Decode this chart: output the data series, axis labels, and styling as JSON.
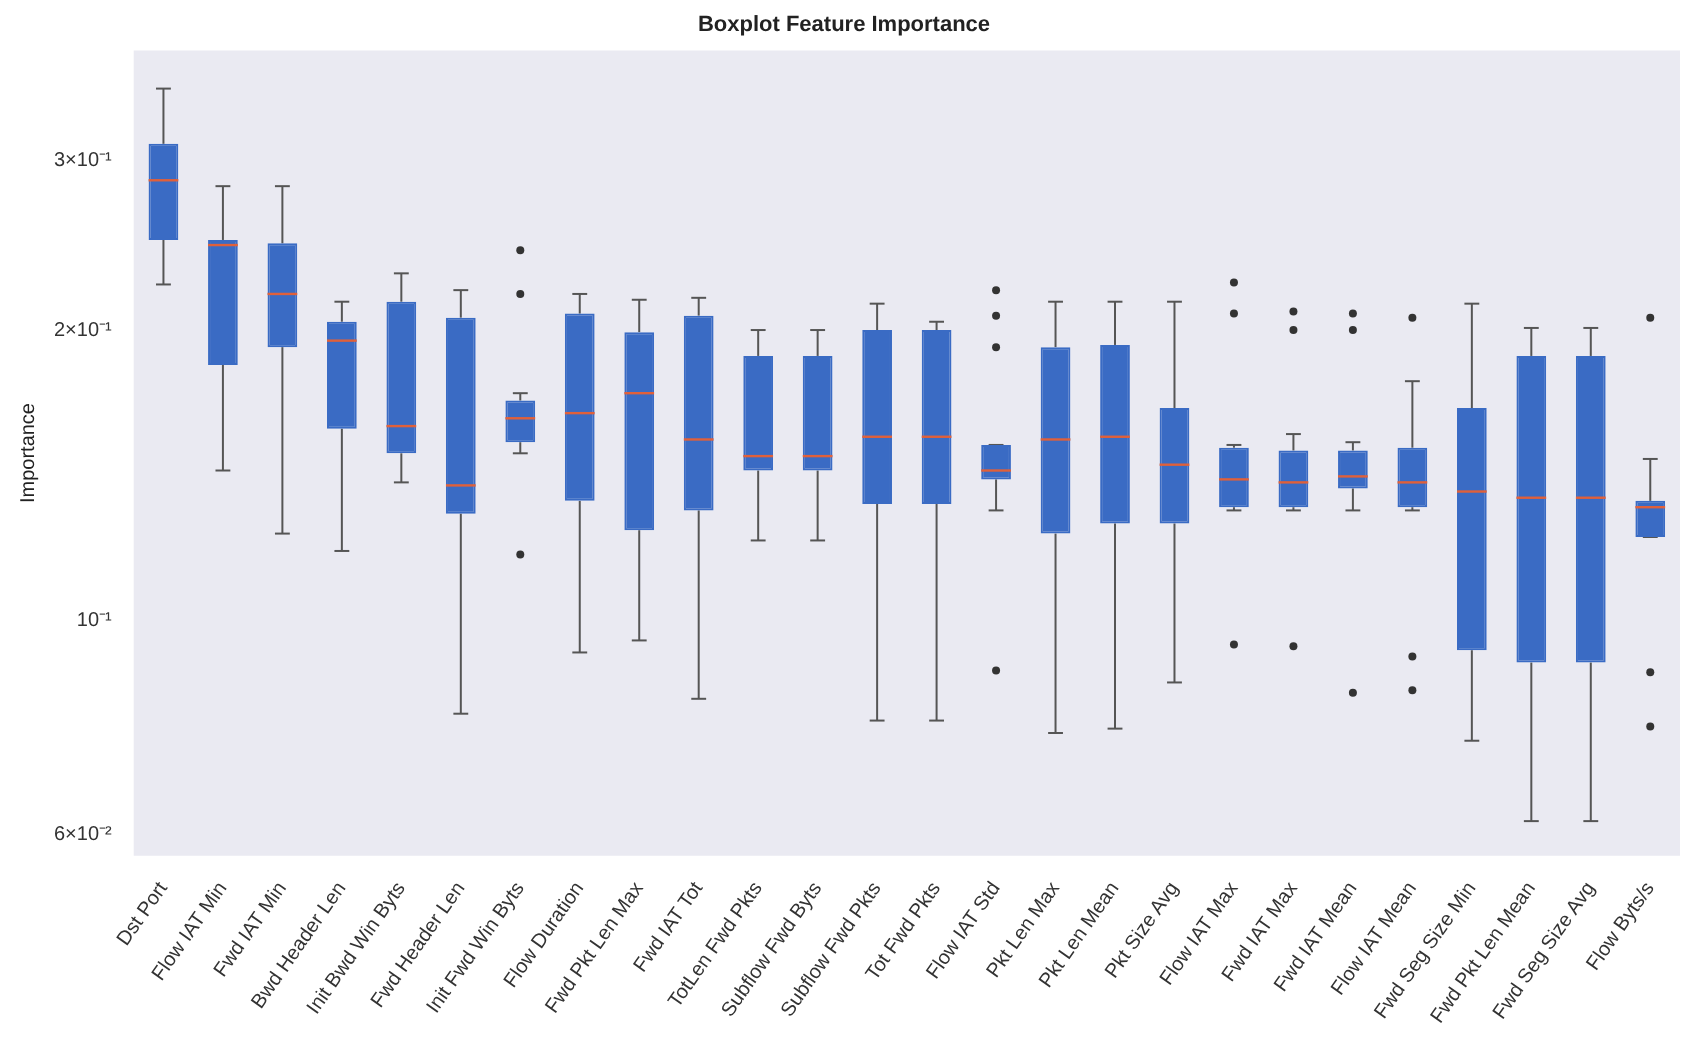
{
  "chart_data": {
    "type": "box",
    "title": "Boxplot Feature Importance",
    "ylabel": "Importance",
    "categories": [
      "Dst Port",
      "Flow IAT Min",
      "Fwd IAT Min",
      "Bwd Header Len",
      "Init Bwd Win Byts",
      "Fwd Header Len",
      "Init Fwd Win Byts",
      "Flow Duration",
      "Fwd Pkt Len Max",
      "Fwd IAT Tot",
      "TotLen Fwd Pkts",
      "Subflow Fwd Byts",
      "Subflow Fwd Pkts",
      "Tot Fwd Pkts",
      "Flow IAT Std",
      "Pkt Len Max",
      "Pkt Len Mean",
      "Pkt Size Avg",
      "Flow IAT Max",
      "Fwd IAT Max",
      "Fwd IAT Mean",
      "Flow IAT Mean",
      "Fwd Seg Size Min",
      "Fwd Pkt Len Mean",
      "Fwd Seg Size Avg",
      "Flow Byts/s"
    ],
    "color": "#3a6bc4",
    "boxes": [
      {
        "low": 0.223,
        "q1": 0.248,
        "median": 0.286,
        "q3": 0.312,
        "high": 0.356
      },
      {
        "low": 0.143,
        "q1": 0.184,
        "median": 0.245,
        "q3": 0.248,
        "high": 0.282
      },
      {
        "low": 0.123,
        "q1": 0.192,
        "median": 0.218,
        "q3": 0.246,
        "high": 0.282
      },
      {
        "low": 0.118,
        "q1": 0.158,
        "median": 0.195,
        "q3": 0.204,
        "high": 0.214
      },
      {
        "low": 0.139,
        "q1": 0.149,
        "median": 0.159,
        "q3": 0.214,
        "high": 0.229
      },
      {
        "low": 0.08,
        "q1": 0.129,
        "median": 0.138,
        "q3": 0.206,
        "high": 0.22
      },
      {
        "low": 0.149,
        "q1": 0.153,
        "median": 0.162,
        "q3": 0.169,
        "high": 0.172,
        "outliers": [
          0.242,
          0.218,
          0.117
        ]
      },
      {
        "low": 0.0926,
        "q1": 0.133,
        "median": 0.164,
        "q3": 0.208,
        "high": 0.218
      },
      {
        "low": 0.0953,
        "q1": 0.124,
        "median": 0.172,
        "q3": 0.199,
        "high": 0.215
      },
      {
        "low": 0.0829,
        "q1": 0.13,
        "median": 0.154,
        "q3": 0.207,
        "high": 0.216
      },
      {
        "low": 0.121,
        "q1": 0.143,
        "median": 0.148,
        "q3": 0.188,
        "high": 0.2
      },
      {
        "low": 0.121,
        "q1": 0.143,
        "median": 0.148,
        "q3": 0.188,
        "high": 0.2
      },
      {
        "low": 0.0787,
        "q1": 0.132,
        "median": 0.155,
        "q3": 0.2,
        "high": 0.213
      },
      {
        "low": 0.0787,
        "q1": 0.132,
        "median": 0.155,
        "q3": 0.2,
        "high": 0.204
      },
      {
        "low": 0.13,
        "q1": 0.14,
        "median": 0.143,
        "q3": 0.152,
        "high": 0.152,
        "outliers": [
          0.22,
          0.207,
          0.192,
          0.0887
        ]
      },
      {
        "low": 0.0764,
        "q1": 0.123,
        "median": 0.154,
        "q3": 0.192,
        "high": 0.214
      },
      {
        "low": 0.0772,
        "q1": 0.126,
        "median": 0.155,
        "q3": 0.193,
        "high": 0.214
      },
      {
        "low": 0.0862,
        "q1": 0.126,
        "median": 0.145,
        "q3": 0.166,
        "high": 0.214
      },
      {
        "low": 0.13,
        "q1": 0.131,
        "median": 0.14,
        "q3": 0.151,
        "high": 0.152,
        "outliers": [
          0.224,
          0.208,
          0.0944
        ]
      },
      {
        "low": 0.13,
        "q1": 0.131,
        "median": 0.139,
        "q3": 0.15,
        "high": 0.156,
        "outliers": [
          0.209,
          0.2,
          0.094
        ]
      },
      {
        "low": 0.13,
        "q1": 0.137,
        "median": 0.141,
        "q3": 0.15,
        "high": 0.153,
        "outliers": [
          0.208,
          0.2,
          0.0841
        ]
      },
      {
        "low": 0.13,
        "q1": 0.131,
        "median": 0.139,
        "q3": 0.151,
        "high": 0.177,
        "outliers": [
          0.206,
          0.0917,
          0.0846
        ]
      },
      {
        "low": 0.075,
        "q1": 0.0931,
        "median": 0.136,
        "q3": 0.166,
        "high": 0.213
      },
      {
        "low": 0.0619,
        "q1": 0.0904,
        "median": 0.134,
        "q3": 0.188,
        "high": 0.201
      },
      {
        "low": 0.0619,
        "q1": 0.0904,
        "median": 0.134,
        "q3": 0.188,
        "high": 0.201
      },
      {
        "low": 0.122,
        "q1": 0.122,
        "median": 0.131,
        "q3": 0.133,
        "high": 0.147,
        "outliers": [
          0.206,
          0.0883,
          0.0776
        ]
      }
    ],
    "log": "y",
    "ylim": [
      0.057,
      0.39
    ],
    "yticks": [
      {
        "value": 0.06,
        "label": "6×10⁻²"
      },
      {
        "value": 0.1,
        "label": "10⁻¹"
      },
      {
        "value": 0.2,
        "label": "2×10⁻¹"
      },
      {
        "value": 0.3,
        "label": "3×10⁻¹"
      }
    ]
  }
}
